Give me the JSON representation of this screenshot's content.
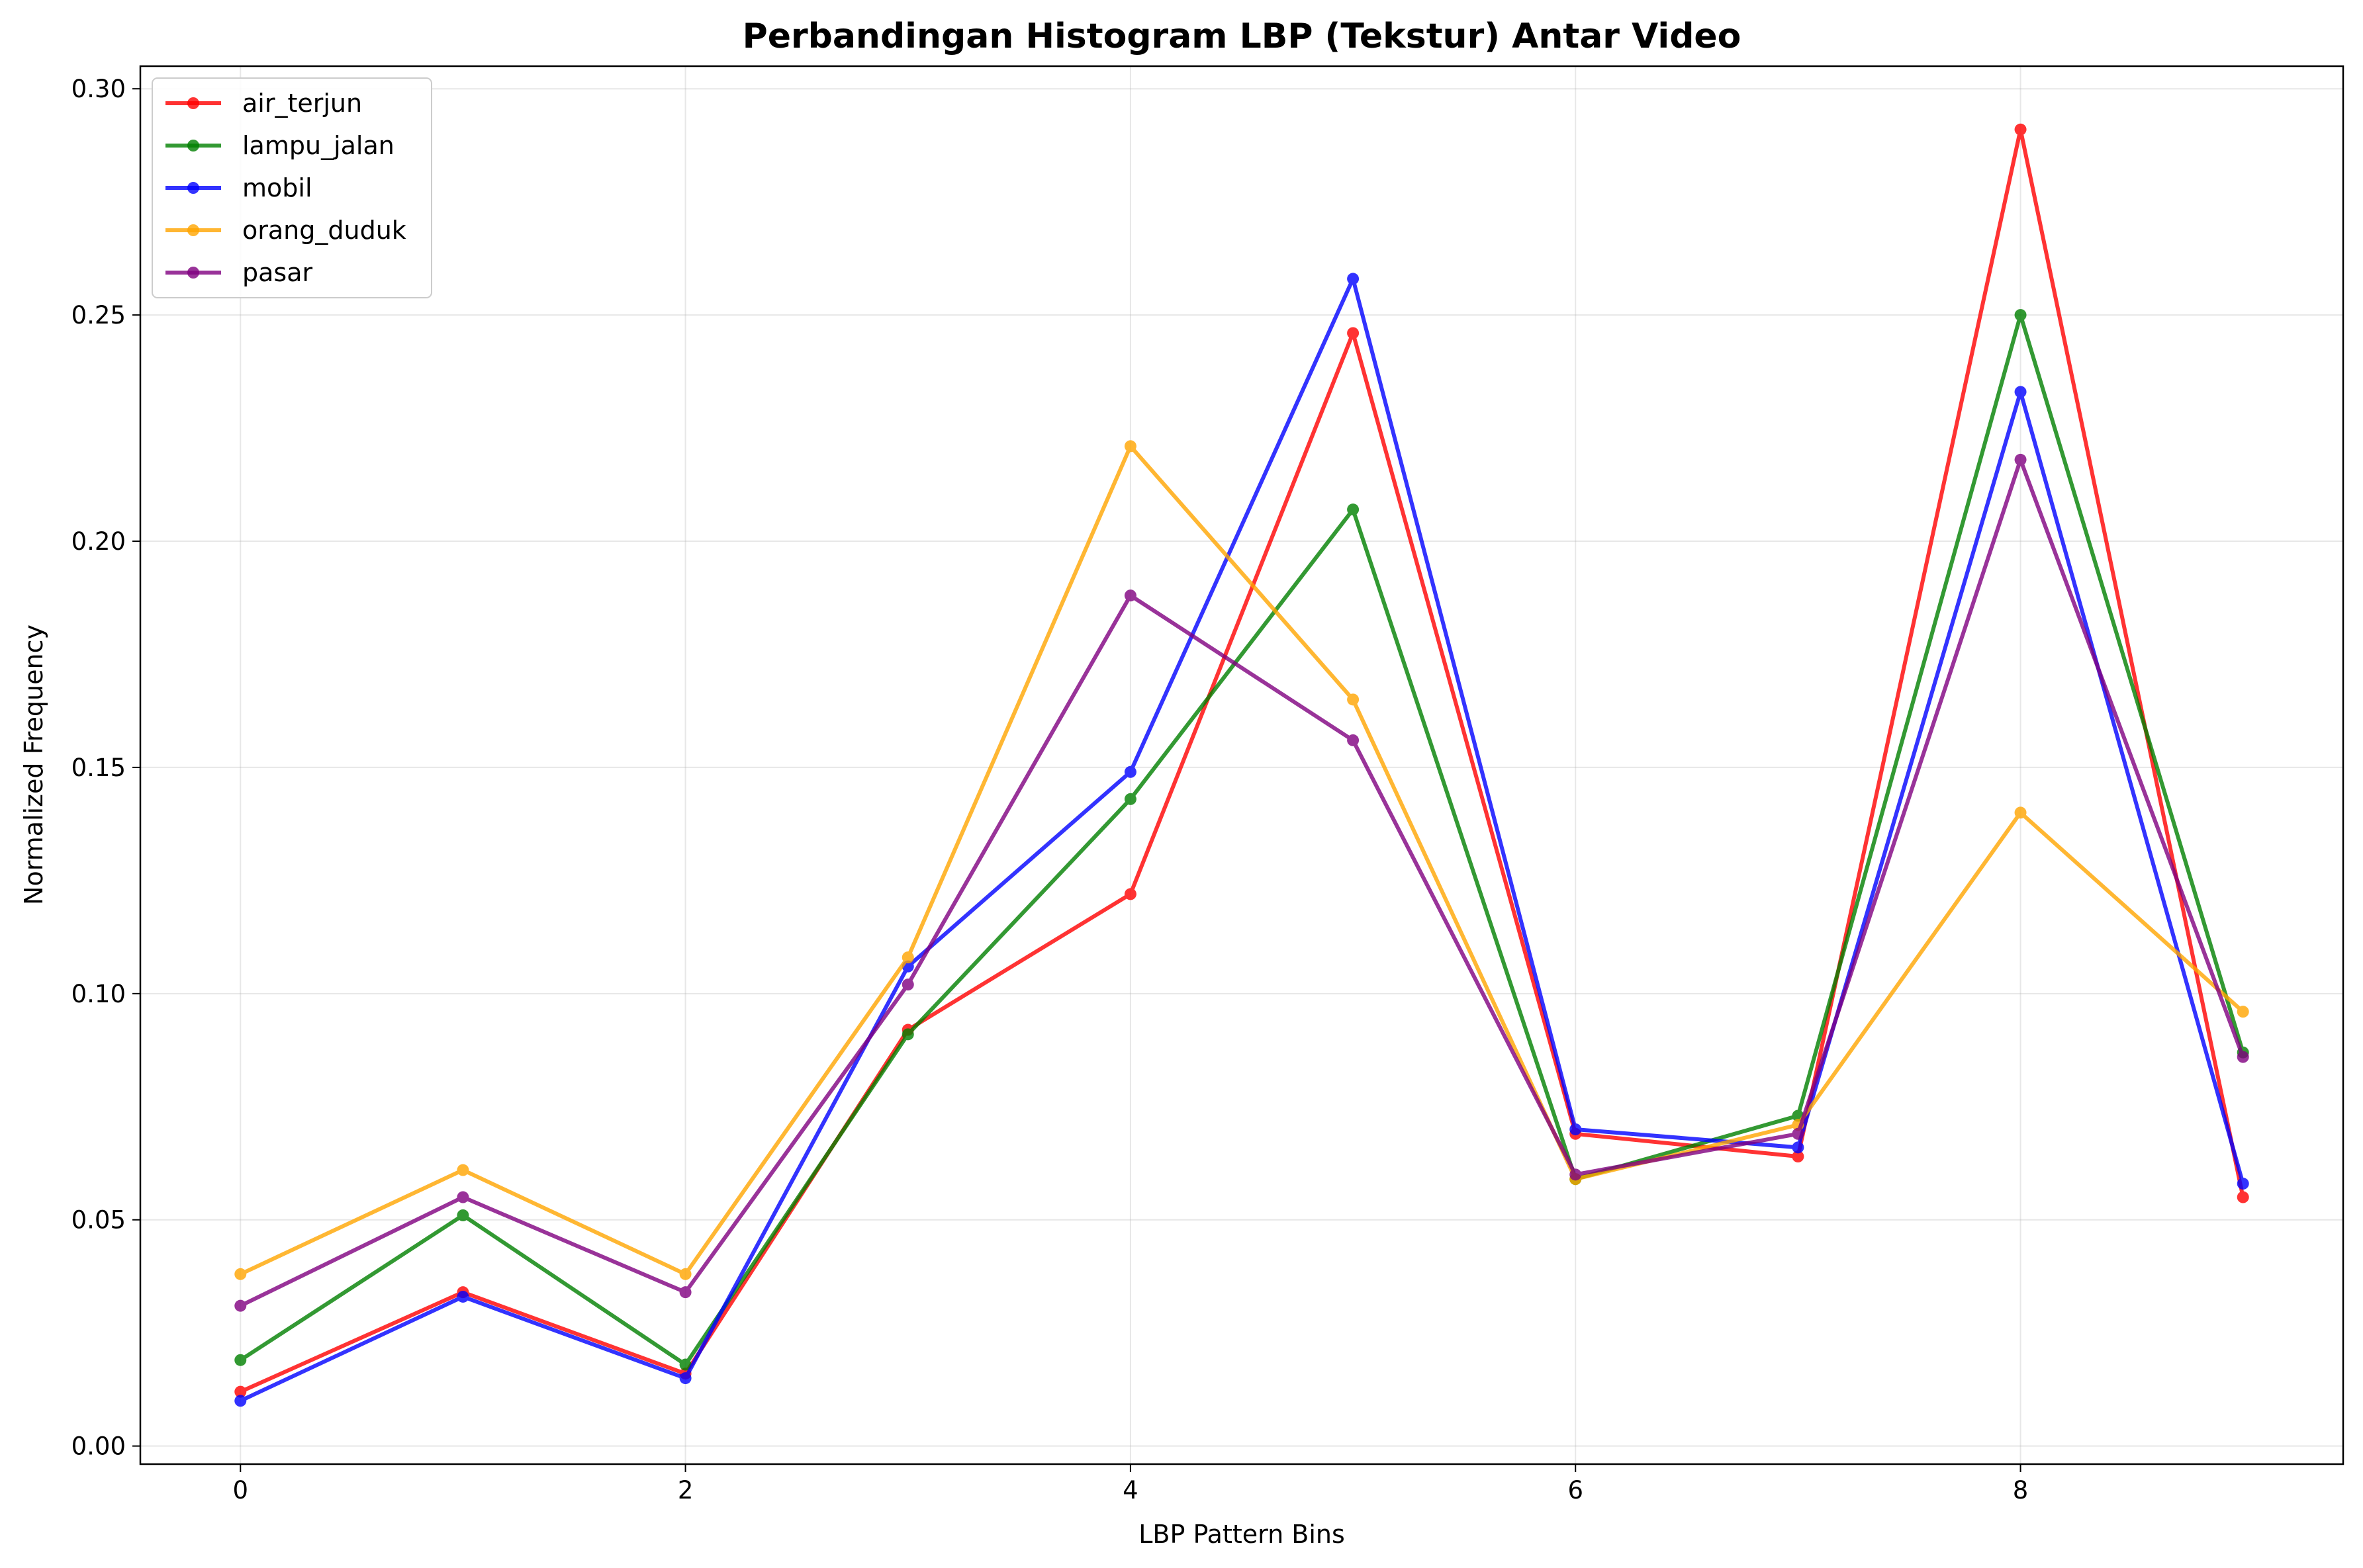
{
  "chart_data": {
    "type": "line",
    "title": "Perbandingan Histogram LBP (Tekstur) Antar Video",
    "xlabel": "LBP Pattern Bins",
    "ylabel": "Normalized Frequency",
    "x": [
      0,
      1,
      2,
      3,
      4,
      5,
      6,
      7,
      8,
      9
    ],
    "xticks": [
      0,
      2,
      4,
      6,
      8
    ],
    "xtick_labels": [
      "0",
      "2",
      "4",
      "6",
      "8"
    ],
    "yticks": [
      0.0,
      0.05,
      0.1,
      0.15,
      0.2,
      0.25,
      0.3
    ],
    "ytick_labels": [
      "0.00",
      "0.05",
      "0.10",
      "0.15",
      "0.20",
      "0.25",
      "0.30"
    ],
    "xlim": [
      -0.45,
      9.45
    ],
    "ylim": [
      -0.004,
      0.305
    ],
    "grid": true,
    "legend_position": "top-left",
    "series": [
      {
        "name": "air_terjun",
        "color": "#ff0000",
        "values": [
          0.012,
          0.034,
          0.016,
          0.092,
          0.122,
          0.246,
          0.069,
          0.064,
          0.291,
          0.055
        ]
      },
      {
        "name": "lampu_jalan",
        "color": "#008000",
        "values": [
          0.019,
          0.051,
          0.018,
          0.091,
          0.143,
          0.207,
          0.059,
          0.073,
          0.25,
          0.087
        ]
      },
      {
        "name": "mobil",
        "color": "#0000ff",
        "values": [
          0.01,
          0.033,
          0.015,
          0.106,
          0.149,
          0.258,
          0.07,
          0.066,
          0.233,
          0.058
        ]
      },
      {
        "name": "orang_duduk",
        "color": "#ffa500",
        "values": [
          0.038,
          0.061,
          0.038,
          0.108,
          0.221,
          0.165,
          0.059,
          0.071,
          0.14,
          0.096
        ]
      },
      {
        "name": "pasar",
        "color": "#800080",
        "values": [
          0.031,
          0.055,
          0.034,
          0.102,
          0.188,
          0.156,
          0.06,
          0.069,
          0.218,
          0.086
        ]
      }
    ]
  }
}
